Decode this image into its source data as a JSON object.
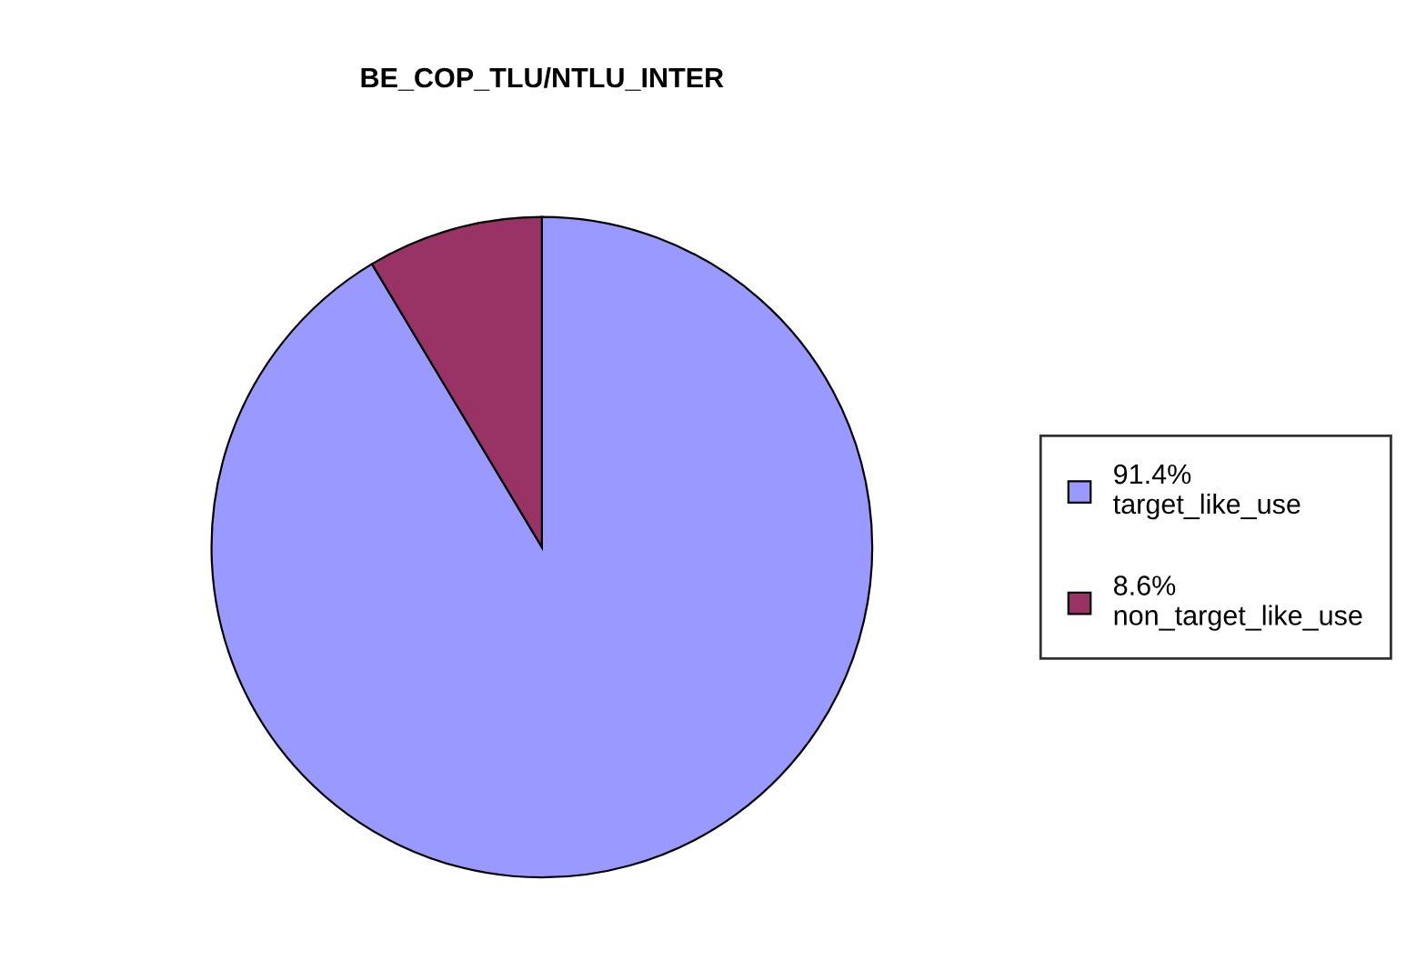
{
  "chart_data": {
    "type": "pie",
    "title": "BE_COP_TLU/NTLU_INTER",
    "categories": [
      "target_like_use",
      "non_target_like_use"
    ],
    "values": [
      91.4,
      8.6
    ],
    "value_labels": [
      "91.4%",
      "8.6%"
    ],
    "colors": [
      "#9999ff",
      "#993366"
    ],
    "legend": "right"
  }
}
